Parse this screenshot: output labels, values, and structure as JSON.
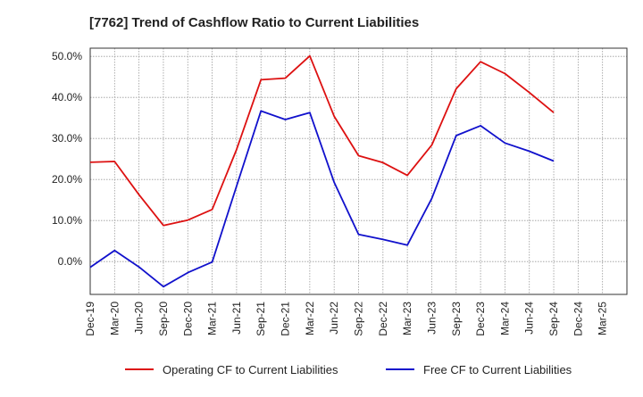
{
  "chart_data": {
    "type": "line",
    "title": "[7762]  Trend of Cashflow Ratio to Current Liabilities",
    "xlabel": "",
    "ylabel": "",
    "categories": [
      "Dec-19",
      "Mar-20",
      "Jun-20",
      "Sep-20",
      "Dec-20",
      "Mar-21",
      "Jun-21",
      "Sep-21",
      "Dec-21",
      "Mar-22",
      "Jun-22",
      "Sep-22",
      "Dec-22",
      "Mar-23",
      "Jun-23",
      "Sep-23",
      "Dec-23",
      "Mar-24",
      "Jun-24",
      "Sep-24",
      "Dec-24",
      "Mar-25"
    ],
    "series": [
      {
        "name": "Operating CF to Current Liabilities",
        "color": "#dd1111",
        "values": [
          24.2,
          24.4,
          16.3,
          8.8,
          10.1,
          12.7,
          27.3,
          44.3,
          44.7,
          50.1,
          35.4,
          25.8,
          24.1,
          21.0,
          28.4,
          42.1,
          48.7,
          45.8,
          41.2,
          36.3,
          null,
          null
        ]
      },
      {
        "name": "Free CF to Current Liabilities",
        "color": "#1111cc",
        "values": [
          -1.4,
          2.7,
          -1.3,
          -6.1,
          -2.7,
          -0.1,
          18.4,
          36.7,
          34.6,
          36.3,
          19.3,
          6.6,
          5.4,
          4.0,
          15.4,
          30.7,
          33.1,
          28.9,
          26.9,
          24.5,
          null,
          null
        ]
      }
    ],
    "yticks": [
      "50.0%",
      "40.0%",
      "30.0%",
      "20.0%",
      "10.0%",
      "0.0%"
    ],
    "ytick_values": [
      50,
      40,
      30,
      20,
      10,
      0
    ],
    "ylim": [
      -8,
      52
    ],
    "grid": true,
    "legend_position": "bottom"
  }
}
